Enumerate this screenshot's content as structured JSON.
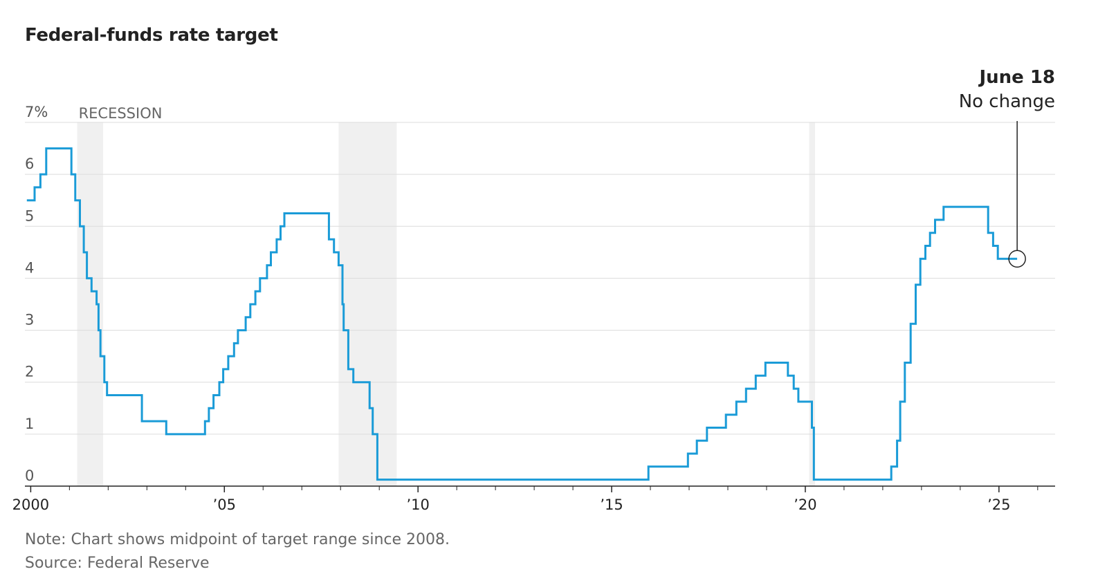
{
  "header": {
    "title": "Federal-funds rate target"
  },
  "footer": {
    "note": "Note: Chart shows midpoint of target range since 2008.",
    "source": "Source: Federal Reserve"
  },
  "chart_data": {
    "type": "line",
    "title": "Federal-funds rate target",
    "xlabel": "",
    "ylabel": "",
    "xlim": [
      1999.85,
      2026.45
    ],
    "ylim": [
      0,
      7
    ],
    "grid": true,
    "y_ticks": [
      {
        "value": 0,
        "label": "0"
      },
      {
        "value": 1,
        "label": "1"
      },
      {
        "value": 2,
        "label": "2"
      },
      {
        "value": 3,
        "label": "3"
      },
      {
        "value": 4,
        "label": "4"
      },
      {
        "value": 5,
        "label": "5"
      },
      {
        "value": 6,
        "label": "6"
      },
      {
        "value": 7,
        "label": "7%"
      }
    ],
    "x_ticks": [
      {
        "value": 2000,
        "label": "2000"
      },
      {
        "value": 2005,
        "label": "’05"
      },
      {
        "value": 2010,
        "label": "’10"
      },
      {
        "value": 2015,
        "label": "’15"
      },
      {
        "value": 2020,
        "label": "’20"
      },
      {
        "value": 2025,
        "label": "’25"
      }
    ],
    "minor_x_ticks": [
      2001,
      2002,
      2003,
      2004,
      2006,
      2007,
      2008,
      2009,
      2011,
      2012,
      2013,
      2014,
      2016,
      2017,
      2018,
      2019,
      2021,
      2022,
      2023,
      2024,
      2026
    ],
    "recessions": [
      {
        "start": 2001.2,
        "end": 2001.87,
        "label": "RECESSION"
      },
      {
        "start": 2007.95,
        "end": 2009.45,
        "label": ""
      },
      {
        "start": 2020.1,
        "end": 2020.25,
        "label": ""
      }
    ],
    "series": [
      {
        "color": "#1a9bd7",
        "points": [
          [
            1999.9,
            5.5
          ],
          [
            2000.1,
            5.75
          ],
          [
            2000.25,
            6.0
          ],
          [
            2000.4,
            6.5
          ],
          [
            2001.05,
            6.0
          ],
          [
            2001.15,
            5.5
          ],
          [
            2001.27,
            5.0
          ],
          [
            2001.37,
            4.5
          ],
          [
            2001.45,
            4.0
          ],
          [
            2001.57,
            3.75
          ],
          [
            2001.7,
            3.5
          ],
          [
            2001.75,
            3.0
          ],
          [
            2001.8,
            2.5
          ],
          [
            2001.9,
            2.0
          ],
          [
            2001.97,
            1.75
          ],
          [
            2002.87,
            1.25
          ],
          [
            2003.5,
            1.0
          ],
          [
            2004.5,
            1.25
          ],
          [
            2004.6,
            1.5
          ],
          [
            2004.72,
            1.75
          ],
          [
            2004.87,
            2.0
          ],
          [
            2004.97,
            2.25
          ],
          [
            2005.1,
            2.5
          ],
          [
            2005.25,
            2.75
          ],
          [
            2005.35,
            3.0
          ],
          [
            2005.55,
            3.25
          ],
          [
            2005.67,
            3.5
          ],
          [
            2005.8,
            3.75
          ],
          [
            2005.92,
            4.0
          ],
          [
            2006.1,
            4.25
          ],
          [
            2006.2,
            4.5
          ],
          [
            2006.35,
            4.75
          ],
          [
            2006.45,
            5.0
          ],
          [
            2006.55,
            5.25
          ],
          [
            2007.7,
            4.75
          ],
          [
            2007.83,
            4.5
          ],
          [
            2007.95,
            4.25
          ],
          [
            2008.05,
            3.5
          ],
          [
            2008.08,
            3.0
          ],
          [
            2008.2,
            2.25
          ],
          [
            2008.33,
            2.0
          ],
          [
            2008.75,
            1.5
          ],
          [
            2008.83,
            1.0
          ],
          [
            2008.95,
            0.125
          ],
          [
            2015.95,
            0.375
          ],
          [
            2016.97,
            0.625
          ],
          [
            2017.2,
            0.875
          ],
          [
            2017.46,
            1.125
          ],
          [
            2017.95,
            1.375
          ],
          [
            2018.22,
            1.625
          ],
          [
            2018.47,
            1.875
          ],
          [
            2018.72,
            2.125
          ],
          [
            2018.97,
            2.375
          ],
          [
            2019.55,
            2.125
          ],
          [
            2019.7,
            1.875
          ],
          [
            2019.82,
            1.625
          ],
          [
            2020.17,
            1.125
          ],
          [
            2020.22,
            0.125
          ],
          [
            2022.22,
            0.375
          ],
          [
            2022.37,
            0.875
          ],
          [
            2022.45,
            1.625
          ],
          [
            2022.57,
            2.375
          ],
          [
            2022.72,
            3.125
          ],
          [
            2022.85,
            3.875
          ],
          [
            2022.97,
            4.375
          ],
          [
            2023.1,
            4.625
          ],
          [
            2023.22,
            4.875
          ],
          [
            2023.35,
            5.125
          ],
          [
            2023.57,
            5.375
          ],
          [
            2024.72,
            4.875
          ],
          [
            2024.85,
            4.625
          ],
          [
            2024.97,
            4.375
          ],
          [
            2025.47,
            4.375
          ]
        ]
      }
    ],
    "annotations": [
      {
        "date": "June 18",
        "text": "No change",
        "x": 2025.47,
        "y": 4.375
      }
    ]
  }
}
